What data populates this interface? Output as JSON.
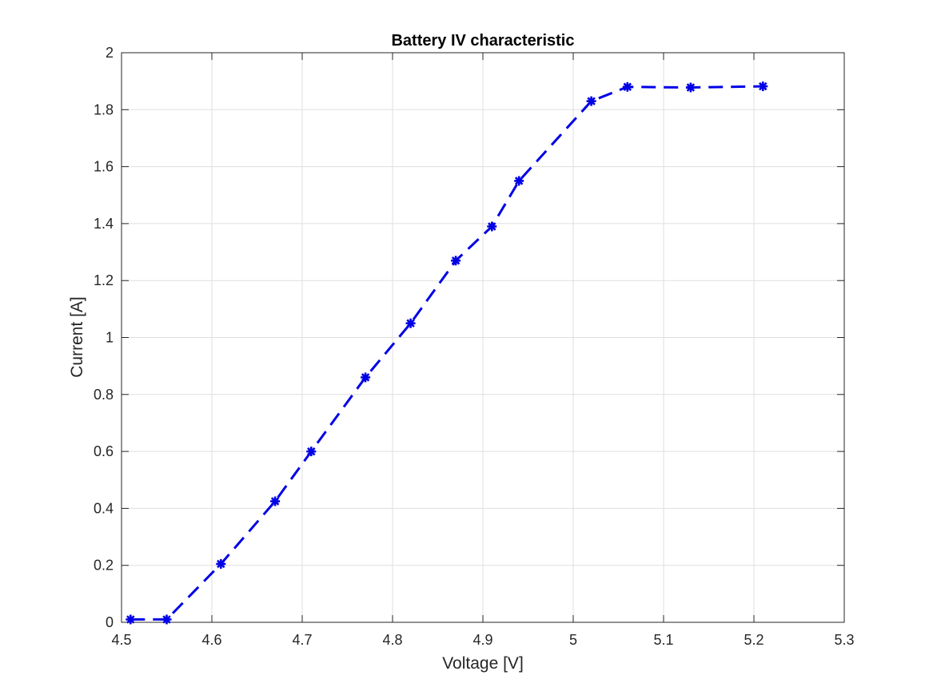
{
  "chart_data": {
    "type": "line",
    "title": "Battery IV characteristic",
    "xlabel": "Voltage [V]",
    "ylabel": "Current [A]",
    "xlim": [
      4.5,
      5.3
    ],
    "ylim": [
      0,
      2
    ],
    "xticks": [
      4.5,
      4.6,
      4.7,
      4.8,
      4.9,
      5,
      5.1,
      5.2,
      5.3
    ],
    "xtick_labels": [
      "4.5",
      "4.6",
      "4.7",
      "4.8",
      "4.9",
      "5",
      "5.1",
      "5.2",
      "5.3"
    ],
    "yticks": [
      0,
      0.2,
      0.4,
      0.6,
      0.8,
      1,
      1.2,
      1.4,
      1.6,
      1.8,
      2
    ],
    "ytick_labels": [
      "0",
      "0.2",
      "0.4",
      "0.6",
      "0.8",
      "1",
      "1.2",
      "1.4",
      "1.6",
      "1.8",
      "2"
    ],
    "grid": true,
    "line_style": "dashed",
    "marker": "asterisk",
    "color": "#0000e6",
    "series": [
      {
        "x": [
          4.51,
          4.55,
          4.61,
          4.67,
          4.71,
          4.77,
          4.82,
          4.87,
          4.91,
          4.94,
          5.02,
          5.06,
          5.13,
          5.21
        ],
        "y": [
          0.01,
          0.01,
          0.205,
          0.425,
          0.6,
          0.86,
          1.05,
          1.27,
          1.39,
          1.55,
          1.83,
          1.88,
          1.878,
          1.882
        ]
      }
    ]
  }
}
